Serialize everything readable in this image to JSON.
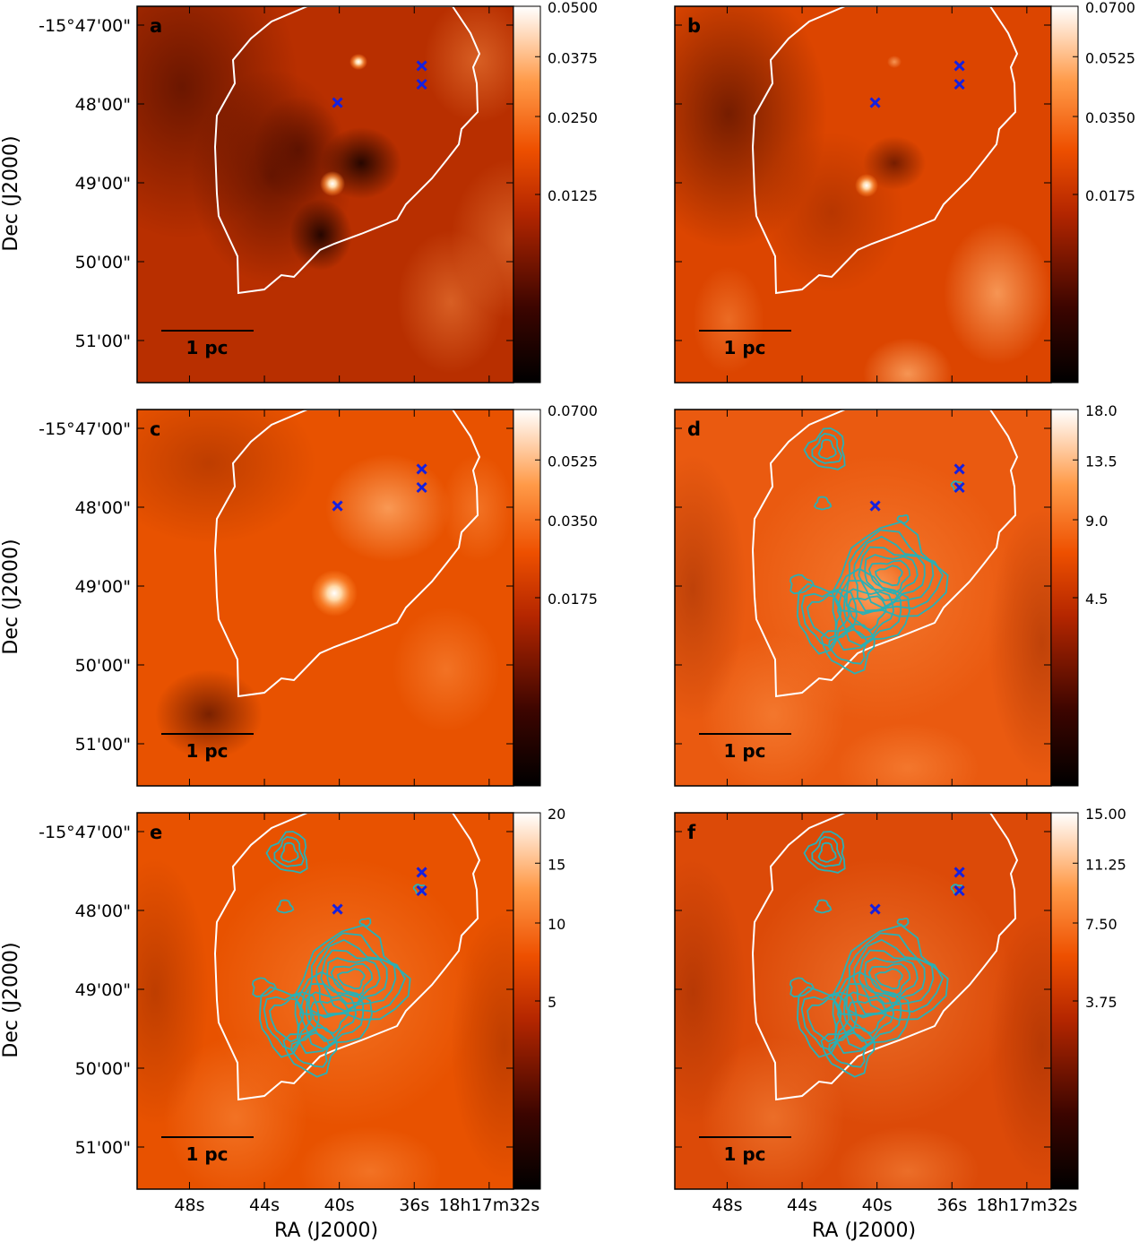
{
  "figure": {
    "xlabel": "RA (J2000)",
    "ylabel": "Dec (J2000)",
    "dec_ticks": [
      "-15°47'00\"",
      "48'00\"",
      "49'00\"",
      "50'00\"",
      "51'00\""
    ],
    "ra_ticks": [
      "48s",
      "44s",
      "40s",
      "36s",
      "18h17m32s"
    ],
    "scalebar_label": "1 pc"
  },
  "colors": {
    "region_outline": "#ffffff",
    "contour": "#2ab0b5",
    "marker": "#1520e0",
    "scalebar": "#000000"
  },
  "chart_data": [
    {
      "panel": "a",
      "type": "heatmap",
      "colormap": "gist_heat",
      "colorbar_max": 0.05,
      "colorbar_ticks": [
        0.05,
        0.0375,
        0.025,
        0.0125
      ],
      "colorbar_tick_labels": [
        "0.0500",
        "0.0375",
        "0.0250",
        "0.0125"
      ],
      "contours": false,
      "markers": [
        {
          "ra_s": 40.1,
          "dec_s": -59
        },
        {
          "ra_s": 35.6,
          "dec_s": -31
        },
        {
          "ra_s": 35.6,
          "dec_s": -45
        }
      ]
    },
    {
      "panel": "b",
      "type": "heatmap",
      "colormap": "gist_heat",
      "colorbar_max": 0.07,
      "colorbar_ticks": [
        0.07,
        0.0525,
        0.035,
        0.0175
      ],
      "colorbar_tick_labels": [
        "0.0700",
        "0.0525",
        "0.0350",
        "0.0175"
      ],
      "contours": false,
      "markers": [
        {
          "ra_s": 40.1,
          "dec_s": -59
        },
        {
          "ra_s": 35.6,
          "dec_s": -31
        },
        {
          "ra_s": 35.6,
          "dec_s": -45
        }
      ]
    },
    {
      "panel": "c",
      "type": "heatmap",
      "colormap": "gist_heat",
      "colorbar_max": 0.07,
      "colorbar_ticks": [
        0.07,
        0.0525,
        0.035,
        0.0175
      ],
      "colorbar_tick_labels": [
        "0.0700",
        "0.0525",
        "0.0350",
        "0.0175"
      ],
      "contours": false,
      "markers": [
        {
          "ra_s": 40.1,
          "dec_s": -59
        },
        {
          "ra_s": 35.6,
          "dec_s": -31
        },
        {
          "ra_s": 35.6,
          "dec_s": -45
        }
      ]
    },
    {
      "panel": "d",
      "type": "heatmap",
      "colormap": "gist_heat",
      "colorbar_max": 18,
      "colorbar_ticks": [
        18,
        13.5,
        9,
        4.5
      ],
      "colorbar_tick_labels": [
        "18.0",
        "13.5",
        "9.0",
        "4.5"
      ],
      "contours": true,
      "markers": [
        {
          "ra_s": 40.1,
          "dec_s": -59
        },
        {
          "ra_s": 35.6,
          "dec_s": -31
        },
        {
          "ra_s": 35.6,
          "dec_s": -45
        }
      ]
    },
    {
      "panel": "e",
      "type": "heatmap",
      "colormap": "gist_heat",
      "colorbar_max": 20,
      "colorbar_ticks": [
        20,
        15,
        10,
        5
      ],
      "colorbar_tick_labels": [
        "20",
        "15",
        "10",
        "5"
      ],
      "contours": true,
      "markers": [
        {
          "ra_s": 40.1,
          "dec_s": -59
        },
        {
          "ra_s": 35.6,
          "dec_s": -31
        },
        {
          "ra_s": 35.6,
          "dec_s": -45
        }
      ]
    },
    {
      "panel": "f",
      "type": "heatmap",
      "colormap": "gist_heat",
      "colorbar_max": 15,
      "colorbar_ticks": [
        15,
        11.25,
        7.5,
        3.75
      ],
      "colorbar_tick_labels": [
        "15.00",
        "11.25",
        "7.50",
        "3.75"
      ],
      "contours": true,
      "markers": [
        {
          "ra_s": 40.1,
          "dec_s": -59
        },
        {
          "ra_s": 35.6,
          "dec_s": -31
        },
        {
          "ra_s": 35.6,
          "dec_s": -45
        }
      ]
    }
  ]
}
